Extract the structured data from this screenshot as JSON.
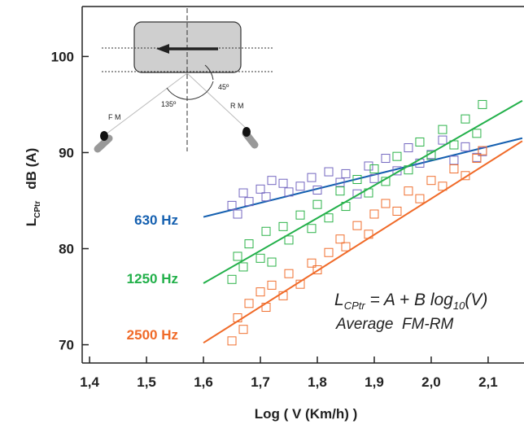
{
  "chart_data": {
    "type": "scatter",
    "x_label": "Log ( V   (Km/h) )",
    "y_label": {
      "main": "L",
      "sub": "CPtr",
      "unit": "dB (A)"
    },
    "xlim": [
      1.387,
      2.163
    ],
    "ylim": [
      68.1,
      105.2
    ],
    "xticks": [
      {
        "value": 1.4,
        "label": "1,4"
      },
      {
        "value": 1.5,
        "label": "1,5"
      },
      {
        "value": 1.6,
        "label": "1,6"
      },
      {
        "value": 1.7,
        "label": "1,7"
      },
      {
        "value": 1.8,
        "label": "1,8"
      },
      {
        "value": 1.9,
        "label": "1,9"
      },
      {
        "value": 2.0,
        "label": "2,0"
      },
      {
        "value": 2.1,
        "label": "2,1"
      }
    ],
    "yticks": [
      70,
      80,
      90,
      100
    ],
    "series": [
      {
        "name": "630 Hz",
        "color": "#7467c0",
        "fit_color": "#1560b0",
        "x": [
          1.65,
          1.66,
          1.67,
          1.68,
          1.7,
          1.71,
          1.72,
          1.74,
          1.75,
          1.77,
          1.79,
          1.8,
          1.82,
          1.84,
          1.85,
          1.87,
          1.89,
          1.9,
          1.92,
          1.94,
          1.96,
          1.98,
          2.0,
          2.02,
          2.04,
          2.06,
          2.08,
          2.09
        ],
        "values": [
          84.5,
          83.6,
          85.8,
          84.9,
          86.2,
          85.4,
          87.1,
          86.8,
          85.9,
          86.5,
          87.4,
          86.1,
          88.0,
          86.9,
          87.8,
          85.7,
          88.6,
          87.3,
          89.4,
          88.1,
          90.5,
          88.9,
          89.8,
          91.3,
          89.2,
          90.6,
          89.5,
          90.1
        ],
        "fit": {
          "x": [
            1.6,
            2.16
          ],
          "values": [
            83.3,
            91.5
          ]
        }
      },
      {
        "name": "1250 Hz",
        "color": "#2db34a",
        "fit_color": "#22b04a",
        "x": [
          1.65,
          1.66,
          1.67,
          1.68,
          1.7,
          1.71,
          1.72,
          1.74,
          1.75,
          1.77,
          1.79,
          1.8,
          1.82,
          1.84,
          1.85,
          1.87,
          1.89,
          1.9,
          1.92,
          1.94,
          1.96,
          1.98,
          2.0,
          2.02,
          2.04,
          2.06,
          2.08,
          2.09
        ],
        "values": [
          76.8,
          79.2,
          78.1,
          80.5,
          79.0,
          81.8,
          78.6,
          82.3,
          80.9,
          83.5,
          82.1,
          84.6,
          83.2,
          86.0,
          84.4,
          87.2,
          85.8,
          88.3,
          87.0,
          89.6,
          88.2,
          91.1,
          89.7,
          92.4,
          90.8,
          93.5,
          92.0,
          95.0
        ],
        "fit": {
          "x": [
            1.6,
            2.16
          ],
          "values": [
            76.4,
            95.4
          ]
        }
      },
      {
        "name": "2500 Hz",
        "color": "#f07030",
        "fit_color": "#f06a28",
        "x": [
          1.65,
          1.66,
          1.67,
          1.68,
          1.7,
          1.71,
          1.72,
          1.74,
          1.75,
          1.77,
          1.79,
          1.8,
          1.82,
          1.84,
          1.85,
          1.87,
          1.89,
          1.9,
          1.92,
          1.94,
          1.96,
          1.98,
          2.0,
          2.02,
          2.04,
          2.06,
          2.08,
          2.09
        ],
        "values": [
          70.4,
          72.8,
          71.6,
          74.3,
          75.5,
          73.9,
          76.2,
          75.1,
          77.4,
          76.3,
          78.5,
          77.8,
          79.6,
          81.0,
          80.2,
          82.4,
          81.5,
          83.6,
          84.7,
          83.9,
          86.0,
          85.2,
          87.1,
          86.5,
          88.3,
          87.6,
          89.4,
          90.2
        ],
        "fit": {
          "x": [
            1.6,
            2.16
          ],
          "values": [
            70.2,
            91.2
          ]
        }
      }
    ],
    "formula": {
      "l": "L",
      "sub": "CPtr",
      "mid": " = A + B log",
      "base": "10",
      "end": "(V)"
    },
    "formula_note": "Average  FM-RM",
    "inset": {
      "front": "F M",
      "rear": "R M",
      "angle_front": "135º",
      "angle_rear": "45º"
    }
  }
}
